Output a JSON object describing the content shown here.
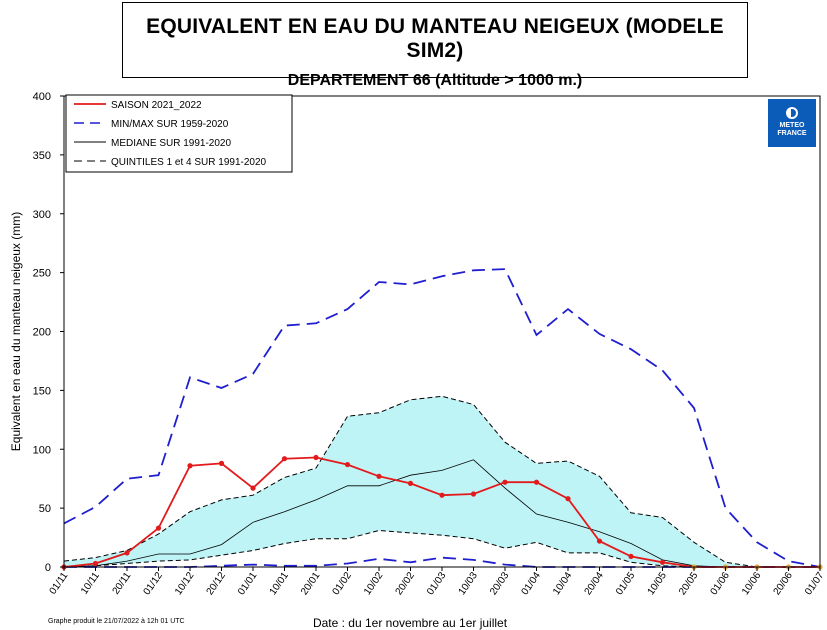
{
  "title": "EQUIVALENT EN EAU DU MANTEAU NEIGEUX (MODELE SIM2)",
  "subtitle": "DEPARTEMENT 66  (Altitude > 1000 m.)",
  "footnote": "Graphe produit le 21/07/2022 à 12h 01 UTC",
  "logo": {
    "line1": "METEO",
    "line2": "FRANCE",
    "icon": "meteo-france-logo-icon"
  },
  "colors": {
    "season": "#e31a1c",
    "minmax": "#1f1fd0",
    "median": "#000000",
    "quintile": "#000000",
    "fill": "#bff4f6",
    "logo": "#0a5cb8"
  },
  "chart_data": {
    "type": "line",
    "xlabel": "Date : du 1er novembre au 1er juillet",
    "ylabel": "Equivalent en eau du manteau neigeux (mm)",
    "ylim": [
      0,
      400
    ],
    "yticks": [
      0,
      50,
      100,
      150,
      200,
      250,
      300,
      350,
      400
    ],
    "categories": [
      "01/11",
      "10/11",
      "20/11",
      "01/12",
      "10/12",
      "20/12",
      "01/01",
      "10/01",
      "20/01",
      "01/02",
      "10/02",
      "20/02",
      "01/03",
      "10/03",
      "20/03",
      "01/04",
      "10/04",
      "20/04",
      "01/05",
      "10/05",
      "20/05",
      "01/06",
      "10/06",
      "20/06",
      "01/07"
    ],
    "legend_position": "top-left",
    "series": [
      {
        "name": "SAISON 2021_2022",
        "style": "solid-red-markers",
        "values": [
          0,
          3,
          12,
          33,
          86,
          88,
          67,
          92,
          93,
          87,
          77,
          71,
          61,
          62,
          72,
          72,
          58,
          22,
          9,
          4,
          0,
          0,
          0,
          0,
          0
        ]
      },
      {
        "name": "MIN/MAX SUR 1959-2020",
        "style": "dashed-blue-max",
        "values": [
          37,
          51,
          75,
          78,
          161,
          152,
          164,
          205,
          207,
          219,
          242,
          240,
          247,
          252,
          253,
          197,
          219,
          198,
          185,
          167,
          135,
          50,
          21,
          5,
          0
        ]
      },
      {
        "name": "MIN/MAX SUR 1959-2020 (min)",
        "style": "dashed-blue-min",
        "values": [
          0,
          0,
          0,
          0,
          0,
          1,
          2,
          1,
          1,
          3,
          7,
          4,
          8,
          6,
          2,
          0,
          0,
          0,
          0,
          0,
          0,
          0,
          0,
          0,
          0
        ]
      },
      {
        "name": "MEDIANE SUR 1991-2020",
        "style": "solid-black-thin",
        "values": [
          0,
          1,
          5,
          11,
          11,
          19,
          38,
          47,
          57,
          69,
          69,
          78,
          82,
          91,
          67,
          45,
          38,
          30,
          20,
          6,
          1,
          0,
          0,
          0,
          0
        ]
      },
      {
        "name": "QUINTILES 1 et 4 SUR 1991-2020",
        "style": "dashed-black-q4",
        "values": [
          5,
          8,
          14,
          28,
          47,
          57,
          61,
          76,
          84,
          128,
          131,
          142,
          145,
          138,
          106,
          88,
          90,
          77,
          46,
          42,
          21,
          4,
          0,
          0,
          0
        ]
      },
      {
        "name": "QUINTILES 1 et 4 SUR 1991-2020 (q1)",
        "style": "dashed-black-q1",
        "values": [
          0,
          1,
          3,
          5,
          6,
          10,
          14,
          20,
          24,
          24,
          31,
          29,
          27,
          24,
          16,
          21,
          12,
          12,
          4,
          1,
          0,
          0,
          0,
          0,
          0
        ]
      }
    ]
  }
}
